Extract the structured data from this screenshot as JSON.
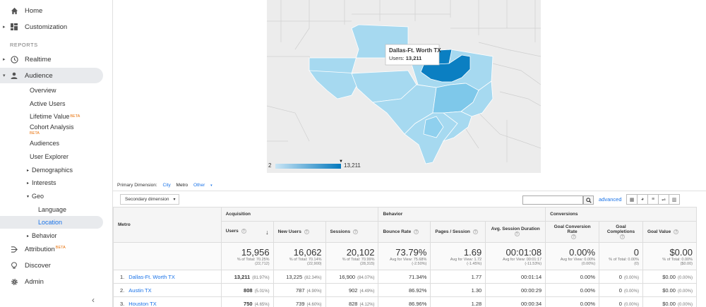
{
  "sidebar": {
    "top_items": [
      {
        "label": "Home",
        "icon": "home-icon"
      },
      {
        "label": "Customization",
        "icon": "dashboard-icon"
      }
    ],
    "section_title": "REPORTS",
    "report_items": [
      {
        "label": "Realtime",
        "icon": "clock-icon"
      },
      {
        "label": "Audience",
        "icon": "person-icon"
      }
    ],
    "audience_children": [
      {
        "label": "Overview"
      },
      {
        "label": "Active Users"
      },
      {
        "label": "Lifetime Value",
        "badge": "BETA"
      },
      {
        "label": "Cohort Analysis",
        "badge": "BETA"
      },
      {
        "label": "Audiences"
      },
      {
        "label": "User Explorer"
      },
      {
        "label": "Demographics"
      },
      {
        "label": "Interests"
      },
      {
        "label": "Geo"
      }
    ],
    "geo_children": [
      {
        "label": "Language"
      },
      {
        "label": "Location"
      }
    ],
    "behavior_label": "Behavior",
    "bottom_items": [
      {
        "label": "Attribution",
        "badge": "BETA",
        "icon": "attribution-icon"
      },
      {
        "label": "Discover",
        "icon": "lightbulb-icon"
      },
      {
        "label": "Admin",
        "icon": "gear-icon"
      }
    ],
    "collapse_glyph": "‹"
  },
  "map": {
    "tooltip_title": "Dallas-Ft. Worth TX",
    "tooltip_metric_label": "Users:",
    "tooltip_metric_value": "13,211",
    "legend_min": "2",
    "legend_max": "13,211",
    "colors": {
      "light": "#a6d9f0",
      "mid": "#7ec8ea",
      "highlight": "#0b7fc2",
      "land": "#ececec",
      "border": "#c8c8c8"
    }
  },
  "dimension": {
    "label": "Primary Dimension:",
    "options": [
      "City",
      "Metro",
      "Other"
    ],
    "selected": "Metro"
  },
  "controls": {
    "secondary_dimension": "Secondary dimension",
    "advanced": "advanced"
  },
  "table": {
    "group_headers": {
      "acquisition": "Acquisition",
      "behavior": "Behavior",
      "conversions": "Conversions"
    },
    "metro_header": "Metro",
    "columns": [
      "Users",
      "New Users",
      "Sessions",
      "Bounce Rate",
      "Pages / Session",
      "Avg. Session Duration",
      "Goal Conversion Rate",
      "Goal Completions",
      "Goal Value"
    ],
    "totals": [
      {
        "value": "15,956",
        "note1": "% of Total: 70.25%",
        "note2": "(22,712)"
      },
      {
        "value": "16,062",
        "note1": "% of Total: 70.14%",
        "note2": "(22,900)"
      },
      {
        "value": "20,102",
        "note1": "% of Total: 70.99%",
        "note2": "(28,315)"
      },
      {
        "value": "73.79%",
        "note1": "Avg for View: 75.68%",
        "note2": "(-2.50%)"
      },
      {
        "value": "1.69",
        "note1": "Avg for View: 1.72",
        "note2": "(-1.45%)"
      },
      {
        "value": "00:01:08",
        "note1": "Avg for View: 00:01:17",
        "note2": "(-11.53%)"
      },
      {
        "value": "0.00%",
        "note1": "Avg for View: 0.00%",
        "note2": "(0.00%)"
      },
      {
        "value": "0",
        "note1": "% of Total: 0.00%",
        "note2": "(0)"
      },
      {
        "value": "$0.00",
        "note1": "% of Total: 0.00%",
        "note2": "($0.00)"
      }
    ],
    "rows": [
      {
        "idx": "1.",
        "metro": "Dallas-Ft. Worth TX",
        "users": "13,211",
        "users_pct": "(81.97%)",
        "new_users": "13,225",
        "new_users_pct": "(82.34%)",
        "sessions": "16,900",
        "sessions_pct": "(84.07%)",
        "bounce": "71.34%",
        "pages": "1.77",
        "duration": "00:01:14",
        "conv": "0.00%",
        "comp": "0",
        "comp_pct": "(0.00%)",
        "value": "$0.00",
        "value_pct": "(0.00%)"
      },
      {
        "idx": "2.",
        "metro": "Austin TX",
        "users": "808",
        "users_pct": "(5.01%)",
        "new_users": "787",
        "new_users_pct": "(4.90%)",
        "sessions": "902",
        "sessions_pct": "(4.49%)",
        "bounce": "86.92%",
        "pages": "1.30",
        "duration": "00:00:29",
        "conv": "0.00%",
        "comp": "0",
        "comp_pct": "(0.00%)",
        "value": "$0.00",
        "value_pct": "(0.00%)"
      },
      {
        "idx": "3.",
        "metro": "Houston TX",
        "users": "750",
        "users_pct": "(4.65%)",
        "new_users": "739",
        "new_users_pct": "(4.60%)",
        "sessions": "828",
        "sessions_pct": "(4.12%)",
        "bounce": "86.96%",
        "pages": "1.28",
        "duration": "00:00:34",
        "conv": "0.00%",
        "comp": "0",
        "comp_pct": "(0.00%)",
        "value": "$0.00",
        "value_pct": "(0.00%)"
      }
    ]
  }
}
